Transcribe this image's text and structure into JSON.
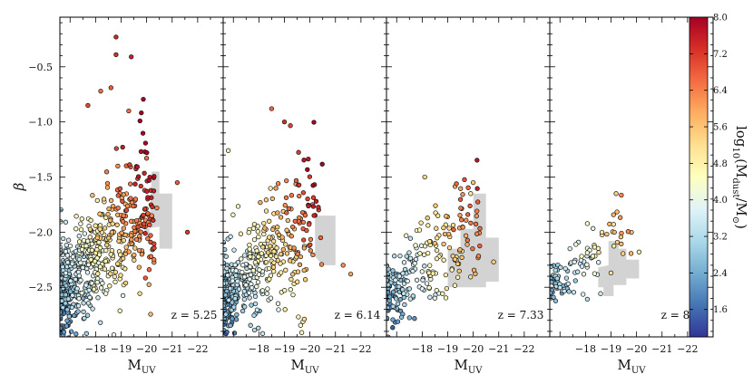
{
  "chart_data": {
    "type": "scatter",
    "ylabel": "β",
    "y_ticks": [
      "−0.5",
      "−1.0",
      "−1.5",
      "−2.0",
      "−2.5"
    ],
    "y_tick_values": [
      -0.5,
      -1.0,
      -1.5,
      -2.0,
      -2.5
    ],
    "ylim": [
      -2.95,
      -0.05
    ],
    "xlim": [
      -16.6,
      -23.0
    ],
    "x_ticks": [
      "−18",
      "−19",
      "−20",
      "−21",
      "−22"
    ],
    "x_tick_values": [
      -18,
      -19,
      -20,
      -21,
      -22
    ],
    "colorbar": {
      "label": "log10(Mdust/M⊙)",
      "range": [
        1.0,
        8.0
      ],
      "ticks": [
        "8.0",
        "7.2",
        "6.4",
        "5.6",
        "4.8",
        "4.0",
        "3.2",
        "2.4",
        "1.6"
      ],
      "tick_values": [
        8.0,
        7.2,
        6.4,
        5.6,
        4.8,
        4.0,
        3.2,
        2.4,
        1.6
      ],
      "colormap": [
        "#313695",
        "#4575b4",
        "#74add1",
        "#abd9e9",
        "#e0f3f8",
        "#ffffbf",
        "#fee090",
        "#fdae61",
        "#f46d43",
        "#d73027",
        "#a50026"
      ]
    },
    "panels": [
      {
        "xlabel": "MUV",
        "redshift_label": "z = 5.25",
        "observed_region": [
          [
            -19.9,
            -1.97
          ],
          [
            -20.1,
            -2.08
          ],
          [
            -20.2,
            -1.45
          ],
          [
            -20.5,
            -1.45
          ],
          [
            -20.5,
            -1.65
          ],
          [
            -21.0,
            -1.65
          ],
          [
            -21.0,
            -2.15
          ],
          [
            -20.5,
            -2.15
          ],
          [
            -20.5,
            -1.95
          ],
          [
            -19.9,
            -1.97
          ]
        ],
        "highlighted_points": [
          {
            "x": -18.8,
            "y": -0.23,
            "c": 7.4
          },
          {
            "x": -18.8,
            "y": -0.39,
            "c": 7.3
          },
          {
            "x": -19.4,
            "y": -0.41,
            "c": 7.5
          },
          {
            "x": -18.6,
            "y": -0.69,
            "c": 6.8
          },
          {
            "x": -18.2,
            "y": -0.72,
            "c": 6.6
          },
          {
            "x": -17.7,
            "y": -0.85,
            "c": 7.0
          },
          {
            "x": -19.3,
            "y": -0.9,
            "c": 6.6
          },
          {
            "x": -20.0,
            "y": -1.33,
            "c": 6.6
          },
          {
            "x": -21.2,
            "y": -1.55,
            "c": 6.8
          },
          {
            "x": -21.6,
            "y": -2.0,
            "c": 7.2
          },
          {
            "x": -20.2,
            "y": -1.85,
            "c": 6.3
          },
          {
            "x": -20.4,
            "y": -1.78,
            "c": 6.4
          }
        ],
        "cloud": {
          "seed": 11,
          "n": 620,
          "x_range": [
            -16.6,
            -20.3
          ],
          "base": -2.55,
          "slope": 0.22,
          "spread": 0.26,
          "c_base": 2.4,
          "c_slope": 0.95
        }
      },
      {
        "xlabel": "MUV",
        "redshift_label": "z = 6.14",
        "observed_region": [
          [
            -20.2,
            -2.22
          ],
          [
            -20.2,
            -1.85
          ],
          [
            -21.0,
            -1.85
          ],
          [
            -21.0,
            -2.3
          ],
          [
            -20.5,
            -2.3
          ],
          [
            -20.2,
            -2.22
          ]
        ],
        "highlighted_points": [
          {
            "x": -18.5,
            "y": -0.88,
            "c": 6.7
          },
          {
            "x": -19.0,
            "y": -1.0,
            "c": 7.3
          },
          {
            "x": -16.8,
            "y": -1.26,
            "c": 4.8
          },
          {
            "x": -21.3,
            "y": -2.3,
            "c": 6.2
          },
          {
            "x": -21.6,
            "y": -2.38,
            "c": 6.0
          }
        ],
        "cloud": {
          "seed": 23,
          "n": 460,
          "x_range": [
            -16.6,
            -20.5
          ],
          "base": -2.58,
          "slope": 0.2,
          "spread": 0.25,
          "c_base": 2.4,
          "c_slope": 0.9
        }
      },
      {
        "xlabel": "MUV",
        "redshift_label": "z = 7.33",
        "observed_region": [
          [
            -19.0,
            -2.45
          ],
          [
            -19.0,
            -2.15
          ],
          [
            -19.5,
            -2.15
          ],
          [
            -19.5,
            -1.97
          ],
          [
            -20.0,
            -1.97
          ],
          [
            -20.0,
            -1.65
          ],
          [
            -20.5,
            -1.65
          ],
          [
            -20.5,
            -2.05
          ],
          [
            -21.0,
            -2.05
          ],
          [
            -21.0,
            -2.45
          ],
          [
            -20.5,
            -2.45
          ],
          [
            -20.5,
            -2.5
          ],
          [
            -19.0,
            -2.5
          ]
        ],
        "highlighted_points": [
          {
            "x": -18.1,
            "y": -1.5,
            "c": 5.3
          },
          {
            "x": -20.0,
            "y": -1.55,
            "c": 5.6
          },
          {
            "x": -20.8,
            "y": -2.27,
            "c": 5.4
          },
          {
            "x": -19.9,
            "y": -1.65,
            "c": 4.9
          }
        ],
        "cloud": {
          "seed": 37,
          "n": 230,
          "x_range": [
            -16.6,
            -20.3
          ],
          "base": -2.6,
          "slope": 0.18,
          "spread": 0.22,
          "c_base": 2.3,
          "c_slope": 0.85
        }
      },
      {
        "xlabel": "MUV",
        "redshift_label": "z = 8.09",
        "observed_region": [
          [
            -18.5,
            -2.32
          ],
          [
            -18.9,
            -2.3
          ],
          [
            -18.9,
            -2.08
          ],
          [
            -19.3,
            -2.08
          ],
          [
            -19.3,
            -2.15
          ],
          [
            -19.6,
            -2.15
          ],
          [
            -19.6,
            -2.25
          ],
          [
            -20.1,
            -2.25
          ],
          [
            -20.1,
            -2.42
          ],
          [
            -19.6,
            -2.42
          ],
          [
            -19.6,
            -2.48
          ],
          [
            -19.1,
            -2.48
          ],
          [
            -19.1,
            -2.58
          ],
          [
            -18.7,
            -2.58
          ],
          [
            -18.7,
            -2.5
          ],
          [
            -18.5,
            -2.5
          ]
        ],
        "highlighted_points": [
          {
            "x": -19.2,
            "y": -1.65,
            "c": 5.4
          },
          {
            "x": -19.1,
            "y": -1.93,
            "c": 5.0
          },
          {
            "x": -20.1,
            "y": -2.18,
            "c": 4.8
          }
        ],
        "cloud": {
          "seed": 53,
          "n": 110,
          "x_range": [
            -16.6,
            -19.8
          ],
          "base": -2.55,
          "slope": 0.2,
          "spread": 0.13,
          "c_base": 2.3,
          "c_slope": 0.85
        }
      }
    ]
  }
}
